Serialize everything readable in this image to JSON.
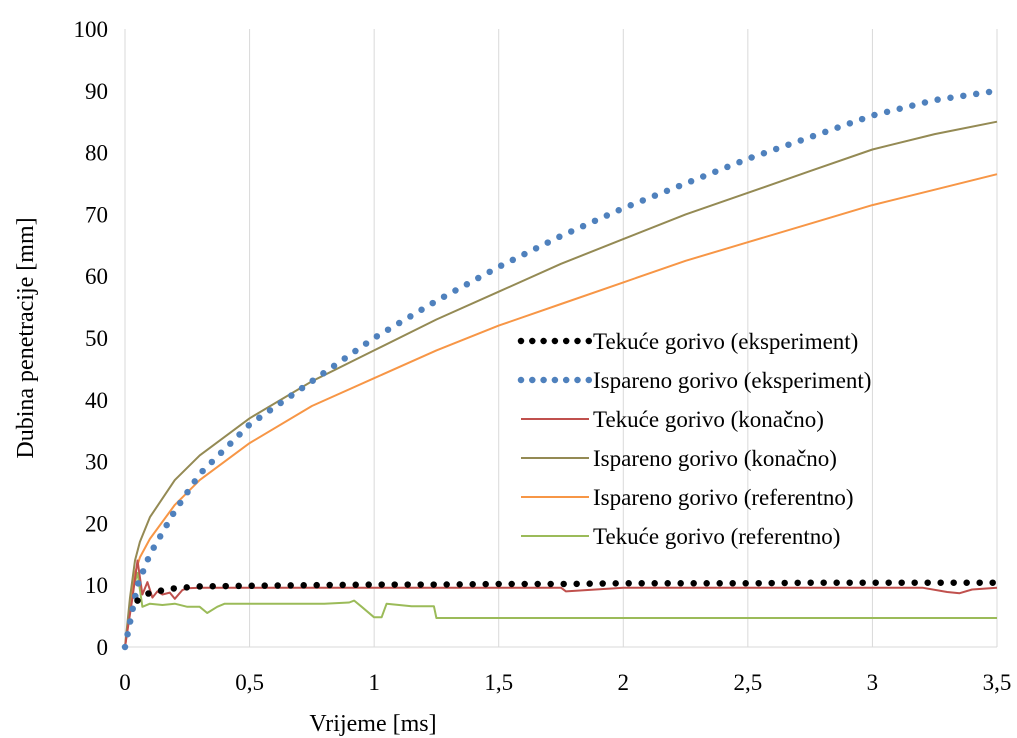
{
  "chart_data": {
    "type": "line",
    "xlabel": "Vrijeme [ms]",
    "ylabel": "Dubina penetracije [mm]",
    "xlim": [
      0,
      3.5
    ],
    "ylim": [
      0,
      100
    ],
    "x_ticks": [
      0,
      0.5,
      1,
      1.5,
      2,
      2.5,
      3,
      3.5
    ],
    "x_tick_labels": [
      "0",
      "0,5",
      "1",
      "1,5",
      "2",
      "2,5",
      "3",
      "3,5"
    ],
    "y_ticks": [
      0,
      10,
      20,
      30,
      40,
      50,
      60,
      70,
      80,
      90,
      100
    ],
    "y_tick_labels": [
      "0",
      "10",
      "20",
      "30",
      "40",
      "50",
      "60",
      "70",
      "80",
      "90",
      "100"
    ],
    "grid": "vertical",
    "legend_position": "center-right",
    "series": [
      {
        "name": "Tekuće gorivo (eksperiment)",
        "style": "dotted",
        "color": "#000000",
        "x": [
          0.05,
          0.1,
          0.2,
          0.3,
          0.5,
          0.75,
          1,
          1.25,
          1.5,
          1.75,
          2,
          2.25,
          2.5,
          2.75,
          3,
          3.25,
          3.5
        ],
        "y": [
          7.5,
          8.8,
          9.5,
          9.8,
          9.9,
          10.0,
          10.1,
          10.1,
          10.2,
          10.2,
          10.3,
          10.3,
          10.3,
          10.4,
          10.4,
          10.4,
          10.4
        ]
      },
      {
        "name": "Ispareno gorivo (eksperiment)",
        "style": "dotted",
        "color": "#4f81bd",
        "x": [
          0,
          0.05,
          0.1,
          0.2,
          0.3,
          0.5,
          0.75,
          1,
          1.25,
          1.5,
          1.75,
          2,
          2.25,
          2.5,
          2.75,
          3,
          3.25,
          3.5
        ],
        "y": [
          0,
          10,
          15,
          22,
          28,
          36,
          43,
          50,
          56,
          61.5,
          66.5,
          71,
          75,
          79,
          82.5,
          86,
          88.5,
          90
        ]
      },
      {
        "name": "Tekuće gorivo (konačno)",
        "style": "solid",
        "color": "#c0504d",
        "x": [
          0,
          0.03,
          0.05,
          0.07,
          0.09,
          0.11,
          0.13,
          0.15,
          0.18,
          0.2,
          0.23,
          0.25,
          0.3,
          0.5,
          1,
          1.5,
          1.75,
          1.77,
          2,
          2.5,
          3,
          3.2,
          3.3,
          3.35,
          3.4,
          3.5
        ],
        "y": [
          0,
          8,
          14,
          8.5,
          10.5,
          8,
          9,
          8.5,
          8.8,
          7.8,
          9.2,
          9.5,
          9.6,
          9.6,
          9.6,
          9.6,
          9.6,
          9.0,
          9.6,
          9.6,
          9.6,
          9.6,
          8.9,
          8.7,
          9.3,
          9.6
        ]
      },
      {
        "name": "Ispareno gorivo (konačno)",
        "style": "solid",
        "color": "#948a54",
        "x": [
          0,
          0.02,
          0.04,
          0.06,
          0.1,
          0.2,
          0.3,
          0.5,
          0.75,
          1,
          1.25,
          1.5,
          1.75,
          2,
          2.25,
          2.5,
          2.75,
          3,
          3.25,
          3.5
        ],
        "y": [
          0,
          8,
          14,
          17,
          21,
          27,
          31,
          37,
          43,
          48,
          53,
          57.5,
          62,
          66,
          70,
          73.5,
          77,
          80.5,
          83,
          85
        ]
      },
      {
        "name": "Ispareno gorivo (referentno)",
        "style": "solid",
        "color": "#f79646",
        "x": [
          0,
          0.02,
          0.04,
          0.06,
          0.1,
          0.2,
          0.3,
          0.5,
          0.75,
          1,
          1.25,
          1.5,
          1.75,
          2,
          2.25,
          2.5,
          2.75,
          3,
          3.25,
          3.5
        ],
        "y": [
          0,
          7,
          12,
          14.5,
          17.5,
          23,
          27,
          33,
          39,
          43.5,
          48,
          52,
          55.5,
          59,
          62.5,
          65.5,
          68.5,
          71.5,
          74,
          76.5
        ]
      },
      {
        "name": "Tekuće gorivo (referentno)",
        "style": "solid",
        "color": "#9bbb59",
        "x": [
          0,
          0.03,
          0.05,
          0.07,
          0.1,
          0.15,
          0.2,
          0.25,
          0.3,
          0.33,
          0.37,
          0.4,
          0.5,
          0.6,
          0.7,
          0.8,
          0.9,
          0.92,
          0.95,
          1.0,
          1.03,
          1.05,
          1.1,
          1.15,
          1.2,
          1.24,
          1.25,
          1.5,
          2,
          2.5,
          3,
          3.5
        ],
        "y": [
          0,
          9,
          12,
          6.5,
          7,
          6.8,
          7,
          6.5,
          6.5,
          5.5,
          6.5,
          7.0,
          7.0,
          7.0,
          7.0,
          7.0,
          7.2,
          7.5,
          6.5,
          4.8,
          4.8,
          7.0,
          6.8,
          6.6,
          6.6,
          6.6,
          4.7,
          4.7,
          4.7,
          4.7,
          4.7,
          4.7
        ]
      }
    ]
  }
}
